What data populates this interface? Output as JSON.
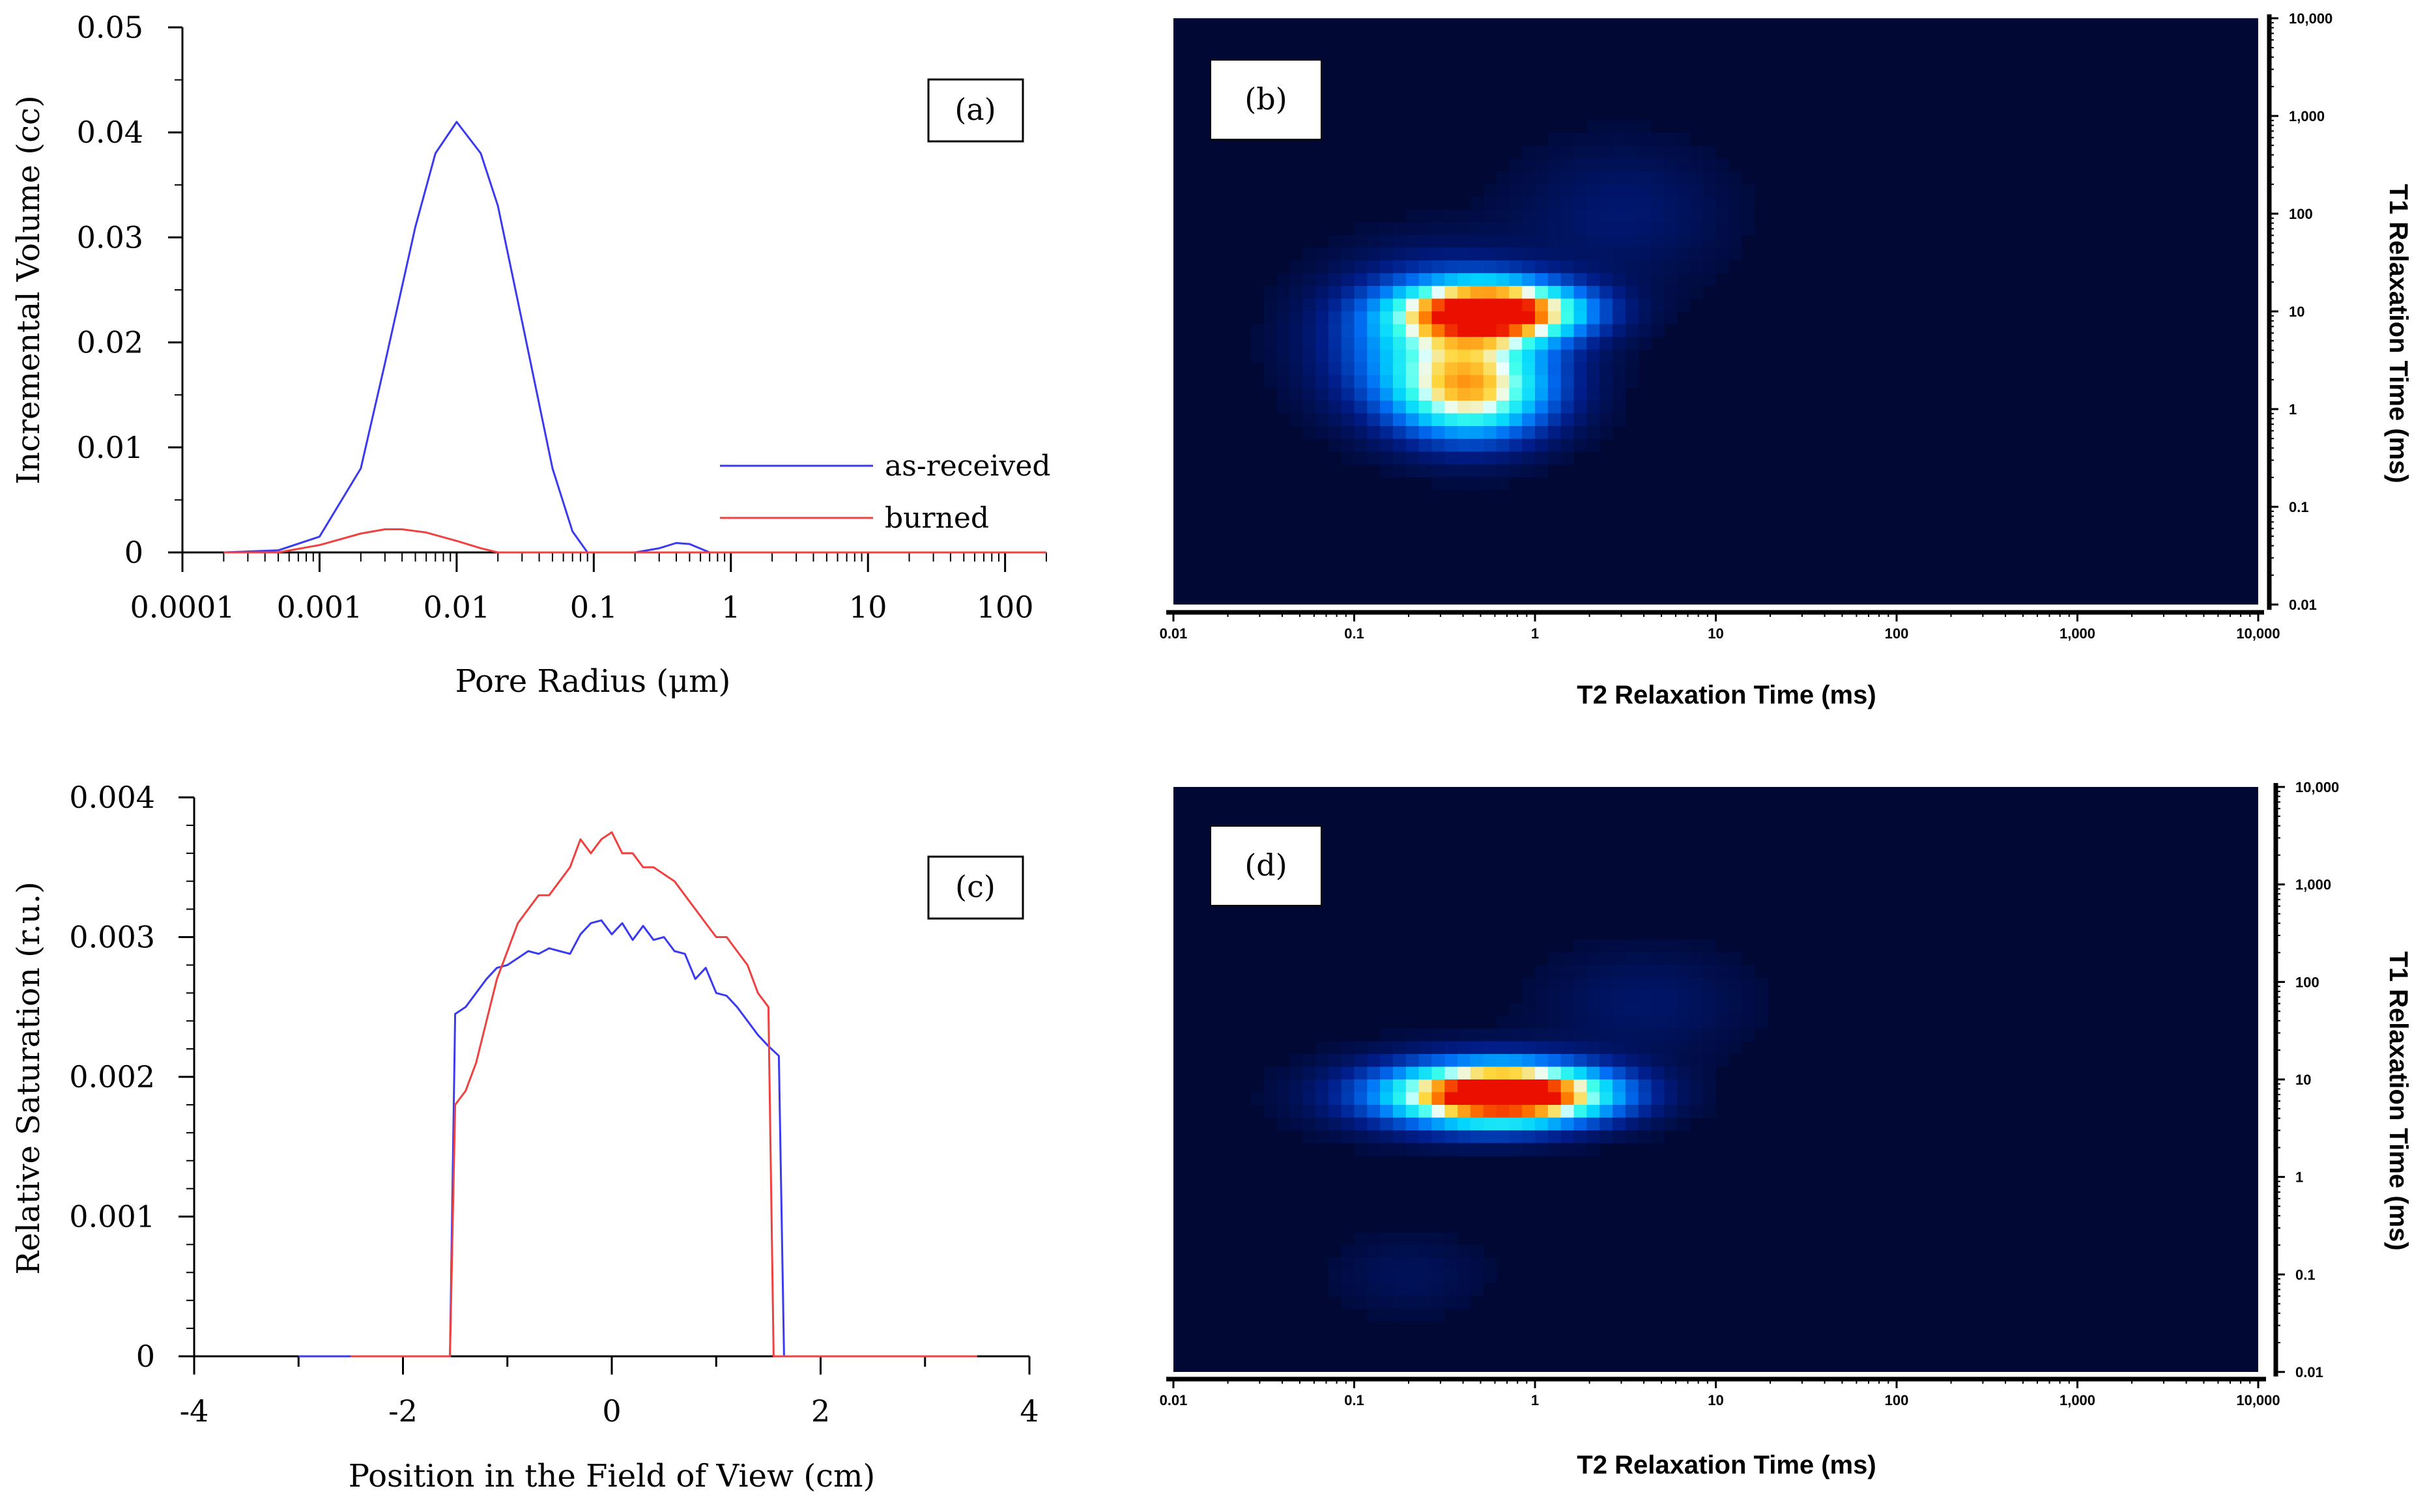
{
  "colors": {
    "as_received": "#3a3af0",
    "burned": "#f04040",
    "heatmap_bg": "#000833"
  },
  "chart_data": [
    {
      "id": "a",
      "type": "line",
      "panel_label": "(a)",
      "xlabel": "Pore Radius (μm)",
      "ylabel": "Incremental Volume (cc)",
      "xscale": "log",
      "xlim": [
        0.0001,
        200
      ],
      "ylim": [
        0,
        0.05
      ],
      "x_tick_labels": [
        "0.0001",
        "0.001",
        "0.01",
        "0.1",
        "1",
        "10",
        "100"
      ],
      "x_tick_values": [
        0.0001,
        0.001,
        0.01,
        0.1,
        1,
        10,
        100
      ],
      "y_tick_labels": [
        "0",
        "0.01",
        "0.02",
        "0.03",
        "0.04",
        "0.05"
      ],
      "y_tick_values": [
        0,
        0.01,
        0.02,
        0.03,
        0.04,
        0.05
      ],
      "legend": {
        "position": "lower-right",
        "entries": [
          "as-received",
          "burned"
        ]
      },
      "series": [
        {
          "name": "as-received",
          "x": [
            0.0002,
            0.0005,
            0.001,
            0.002,
            0.003,
            0.005,
            0.007,
            0.01,
            0.015,
            0.02,
            0.03,
            0.05,
            0.07,
            0.09,
            0.2,
            0.3,
            0.4,
            0.5,
            0.7,
            200
          ],
          "y": [
            0,
            0.0002,
            0.0015,
            0.008,
            0.018,
            0.031,
            0.038,
            0.041,
            0.038,
            0.033,
            0.022,
            0.008,
            0.002,
            0,
            0,
            0.0004,
            0.0009,
            0.0008,
            0,
            0
          ]
        },
        {
          "name": "burned",
          "x": [
            0.0002,
            0.0005,
            0.001,
            0.002,
            0.003,
            0.004,
            0.006,
            0.01,
            0.015,
            0.02,
            200
          ],
          "y": [
            0,
            0,
            0.0007,
            0.0018,
            0.0022,
            0.0022,
            0.0019,
            0.0011,
            0.0004,
            0,
            0
          ]
        }
      ]
    },
    {
      "id": "b",
      "type": "heatmap",
      "panel_label": "(b)",
      "xlabel": "T2 Relaxation Time (ms)",
      "ylabel": "T1 Relaxation Time (ms)",
      "xscale": "log",
      "yscale": "log",
      "xlim": [
        0.01,
        10000
      ],
      "ylim": [
        0.01,
        10000
      ],
      "x_tick_labels": [
        "0.01",
        "0.1",
        "1",
        "10",
        "100",
        "1,000",
        "10,000"
      ],
      "y_tick_labels": [
        "0.01",
        "0.1",
        "1",
        "10",
        "100",
        "1,000",
        "10,000"
      ],
      "tick_values": [
        0.01,
        0.1,
        1,
        10,
        100,
        1000,
        10000
      ],
      "peaks": [
        {
          "t2": 0.6,
          "t1": 10,
          "amp": 1.0,
          "sx": 0.33,
          "sy": 0.2
        },
        {
          "t2": 0.45,
          "t1": 1.5,
          "amp": 0.6,
          "sx": 0.3,
          "sy": 0.34
        },
        {
          "t2": 0.3,
          "t1": 5,
          "amp": 0.4,
          "sx": 0.4,
          "sy": 0.5
        },
        {
          "t2": 3,
          "t1": 100,
          "amp": 0.08,
          "sx": 0.4,
          "sy": 0.5
        }
      ]
    },
    {
      "id": "c",
      "type": "line",
      "panel_label": "(c)",
      "xlabel": "Position in the Field of View (cm)",
      "ylabel": "Relative Saturation (r.u.)",
      "xlim": [
        -4,
        4
      ],
      "ylim": [
        0,
        0.004
      ],
      "x_tick_labels": [
        "-4",
        "-2",
        "0",
        "2",
        "4"
      ],
      "x_tick_values": [
        -4,
        -2,
        0,
        2,
        4
      ],
      "y_tick_labels": [
        "0",
        "0.001",
        "0.002",
        "0.003",
        "0.004"
      ],
      "y_tick_values": [
        0,
        0.001,
        0.002,
        0.003,
        0.004
      ],
      "series": [
        {
          "name": "as-received",
          "x": [
            -3,
            -1.55,
            -1.5,
            -1.4,
            -1.3,
            -1.2,
            -1.1,
            -1.0,
            -0.9,
            -0.8,
            -0.7,
            -0.6,
            -0.5,
            -0.4,
            -0.3,
            -0.2,
            -0.1,
            0,
            0.1,
            0.2,
            0.3,
            0.4,
            0.5,
            0.6,
            0.7,
            0.8,
            0.9,
            1.0,
            1.1,
            1.2,
            1.3,
            1.4,
            1.5,
            1.6,
            1.65,
            3
          ],
          "y": [
            0,
            0,
            0.00245,
            0.0025,
            0.0026,
            0.0027,
            0.00278,
            0.0028,
            0.00285,
            0.0029,
            0.00288,
            0.00292,
            0.0029,
            0.00288,
            0.00302,
            0.0031,
            0.00312,
            0.00302,
            0.0031,
            0.00298,
            0.00308,
            0.00298,
            0.003,
            0.0029,
            0.00288,
            0.0027,
            0.00278,
            0.0026,
            0.00258,
            0.0025,
            0.0024,
            0.0023,
            0.00222,
            0.00215,
            0,
            0
          ]
        },
        {
          "name": "burned",
          "x": [
            -2.5,
            -1.55,
            -1.5,
            -1.4,
            -1.3,
            -1.2,
            -1.1,
            -1.0,
            -0.9,
            -0.8,
            -0.7,
            -0.6,
            -0.5,
            -0.4,
            -0.3,
            -0.2,
            -0.1,
            0,
            0.1,
            0.2,
            0.3,
            0.4,
            0.5,
            0.6,
            0.7,
            0.8,
            0.9,
            1.0,
            1.1,
            1.2,
            1.3,
            1.4,
            1.5,
            1.55,
            3.5
          ],
          "y": [
            0,
            0,
            0.0018,
            0.0019,
            0.0021,
            0.0024,
            0.0027,
            0.0029,
            0.0031,
            0.0032,
            0.0033,
            0.0033,
            0.0034,
            0.0035,
            0.0037,
            0.0036,
            0.0037,
            0.00375,
            0.0036,
            0.0036,
            0.0035,
            0.0035,
            0.00345,
            0.0034,
            0.0033,
            0.0032,
            0.0031,
            0.003,
            0.003,
            0.0029,
            0.0028,
            0.0026,
            0.0025,
            0,
            0
          ]
        }
      ]
    },
    {
      "id": "d",
      "type": "heatmap",
      "panel_label": "(d)",
      "xlabel": "T2 Relaxation Time (ms)",
      "ylabel": "T1 Relaxation Time (ms)",
      "xscale": "log",
      "yscale": "log",
      "xlim": [
        0.01,
        10000
      ],
      "ylim": [
        0.01,
        10000
      ],
      "x_tick_labels": [
        "0.01",
        "0.1",
        "1",
        "10",
        "100",
        "1,000",
        "10,000"
      ],
      "y_tick_labels": [
        "0.01",
        "0.1",
        "1",
        "10",
        "100",
        "1,000",
        "10,000"
      ],
      "tick_values": [
        0.01,
        0.1,
        1,
        10,
        100,
        1000,
        10000
      ],
      "peaks": [
        {
          "t2": 0.75,
          "t1": 7,
          "amp": 1.0,
          "sx": 0.38,
          "sy": 0.2
        },
        {
          "t2": 0.4,
          "t1": 7,
          "amp": 0.35,
          "sx": 0.45,
          "sy": 0.26
        },
        {
          "t2": 4,
          "t1": 60,
          "amp": 0.07,
          "sx": 0.4,
          "sy": 0.4
        },
        {
          "t2": 0.2,
          "t1": 0.1,
          "amp": 0.05,
          "sx": 0.3,
          "sy": 0.3
        }
      ]
    }
  ]
}
